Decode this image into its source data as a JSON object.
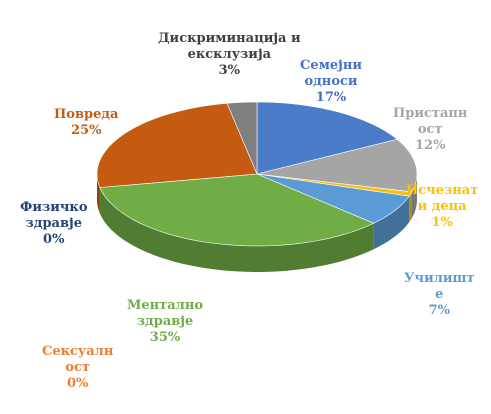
{
  "chart_data": {
    "type": "pie",
    "slices": [
      {
        "name": "Семејни односи",
        "value": 17,
        "pct": "17%",
        "color": "#4a7cc9",
        "lines": [
          "Семејни",
          "односи",
          "17%"
        ]
      },
      {
        "name": "Пристапност",
        "value": 12,
        "pct": "12%",
        "color": "#a5a5a5",
        "lines": [
          "Пристапн",
          "ост",
          "12%"
        ]
      },
      {
        "name": "Исчезнати деца",
        "value": 1,
        "pct": "1%",
        "color": "#f3c118",
        "lines": [
          "Исчезнат",
          "и деца",
          "1%"
        ]
      },
      {
        "name": "Училиште",
        "value": 7,
        "pct": "7%",
        "color": "#5b9bd5",
        "lines": [
          "Училишт",
          "е",
          "7%"
        ]
      },
      {
        "name": "Ментално здравје",
        "value": 35,
        "pct": "35%",
        "color": "#70ad47",
        "lines": [
          "Ментално",
          "здравје",
          "35%"
        ]
      },
      {
        "name": "Сексуалност",
        "value": 0,
        "pct": "0%",
        "color": "#ed7d31",
        "lines": [
          "Сексуалн",
          "ост",
          "0%"
        ]
      },
      {
        "name": "Физичко здравје",
        "value": 0,
        "pct": "0%",
        "color": "#264478",
        "lines": [
          "Физичко",
          "здравје",
          "0%"
        ]
      },
      {
        "name": "Повреда",
        "value": 25,
        "pct": "25%",
        "color": "#c55a11",
        "lines": [
          "Повреда",
          "25%"
        ]
      },
      {
        "name": "Дискриминација и ексклузија",
        "value": 3,
        "pct": "3%",
        "color": "#7f7f7f",
        "lines": [
          "Дискриминација и",
          "ексклузија",
          "3%"
        ]
      }
    ],
    "label_colors": {
      "Семејни односи": "#4472c4",
      "Пристапност": "#a5a5a5",
      "Исчезнати деца": "#ffc000",
      "Училиште": "#5b9bd5",
      "Ментално здравје": "#70ad47",
      "Сексуалност": "#ed7d31",
      "Физичко здравје": "#264478",
      "Повреда": "#c55a11",
      "Дискриминација и ексклузија": "#404040"
    },
    "style": "3d-pie",
    "legend": "none"
  }
}
